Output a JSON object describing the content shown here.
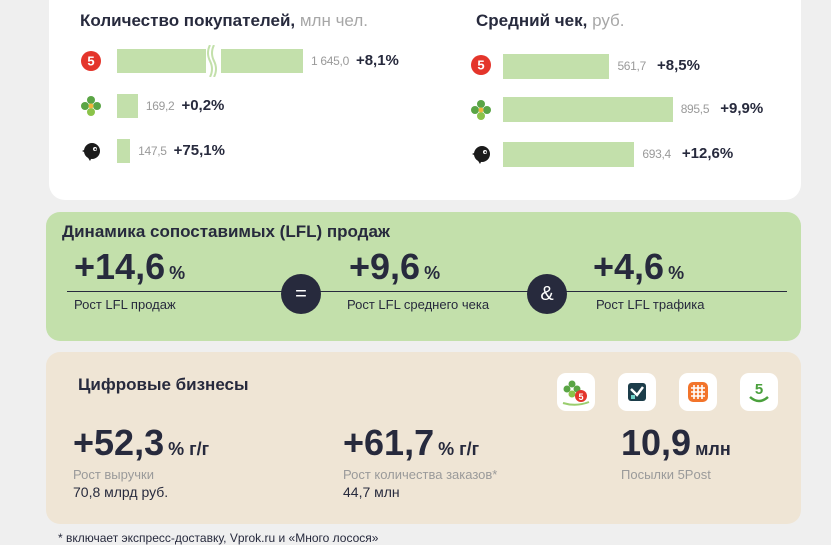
{
  "customers": {
    "title": "Количество покупателей,",
    "unit": "млн чел.",
    "rows": [
      {
        "brand": "pyaterochka-icon",
        "value": 1645.0,
        "value_label": "1 645,0",
        "change": "+8,1%",
        "broken": true
      },
      {
        "brand": "perekrestok-icon",
        "value": 169.2,
        "value_label": "169,2",
        "change": "+0,2%"
      },
      {
        "brand": "chizhik-icon",
        "value": 147.5,
        "value_label": "147,5",
        "change": "+75,1%"
      }
    ]
  },
  "avg_check": {
    "title": "Средний чек,",
    "unit": "руб.",
    "rows": [
      {
        "brand": "pyaterochka-icon",
        "value": 561.7,
        "value_label": "561,7",
        "change": "+8,5%"
      },
      {
        "brand": "perekrestok-icon",
        "value": 895.5,
        "value_label": "895,5",
        "change": "+9,9%"
      },
      {
        "brand": "chizhik-icon",
        "value": 693.4,
        "value_label": "693,4",
        "change": "+12,6%"
      }
    ]
  },
  "chart_data": [
    {
      "type": "bar",
      "title": "Количество покупателей, млн чел.",
      "categories": [
        "Пятёрочка",
        "Перекрёсток",
        "Чижик"
      ],
      "values": [
        1645.0,
        169.2,
        147.5
      ],
      "changes": [
        "+8,1%",
        "+0,2%",
        "+75,1%"
      ],
      "axis_break": true
    },
    {
      "type": "bar",
      "title": "Средний чек, руб.",
      "categories": [
        "Пятёрочка",
        "Перекрёсток",
        "Чижик"
      ],
      "values": [
        561.7,
        895.5,
        693.4
      ],
      "changes": [
        "+8,5%",
        "+9,9%",
        "+12,6%"
      ]
    }
  ],
  "lfl": {
    "title": "Динамика сопоставимых (LFL) продаж",
    "items": [
      {
        "value": "+14,6",
        "unit": "%",
        "caption": "Рост LFL продаж"
      },
      {
        "value": "+9,6",
        "unit": "%",
        "caption": "Рост LFL среднего чека"
      },
      {
        "value": "+4,6",
        "unit": "%",
        "caption": "Рост LFL трафика"
      }
    ],
    "ops": [
      "=",
      "&"
    ]
  },
  "digital": {
    "title": "Цифровые бизнесы",
    "icons": [
      "perekrestok-5-icon",
      "vprok-icon",
      "mnogo-lososya-icon",
      "5post-icon"
    ],
    "items": [
      {
        "value": "+52,3",
        "unit": "% г/г",
        "caption": "Рост выручки",
        "sub": "70,8 млрд руб."
      },
      {
        "value": "+61,7",
        "unit": "% г/г",
        "caption": "Рост количества заказов*",
        "sub": "44,7 млн"
      },
      {
        "value": "10,9",
        "unit": "млн",
        "caption": "Посылки 5Post"
      }
    ]
  },
  "footnote": "*   включает экспресс-доставку, Vprok.ru и «Много лосося»",
  "colors": {
    "bar": "#c3e0ab",
    "lfl_bg": "#c3e0ab",
    "digital_bg": "#efe5d5",
    "dark": "#272a3d",
    "red": "#e4352b",
    "green": "#5aa545"
  }
}
